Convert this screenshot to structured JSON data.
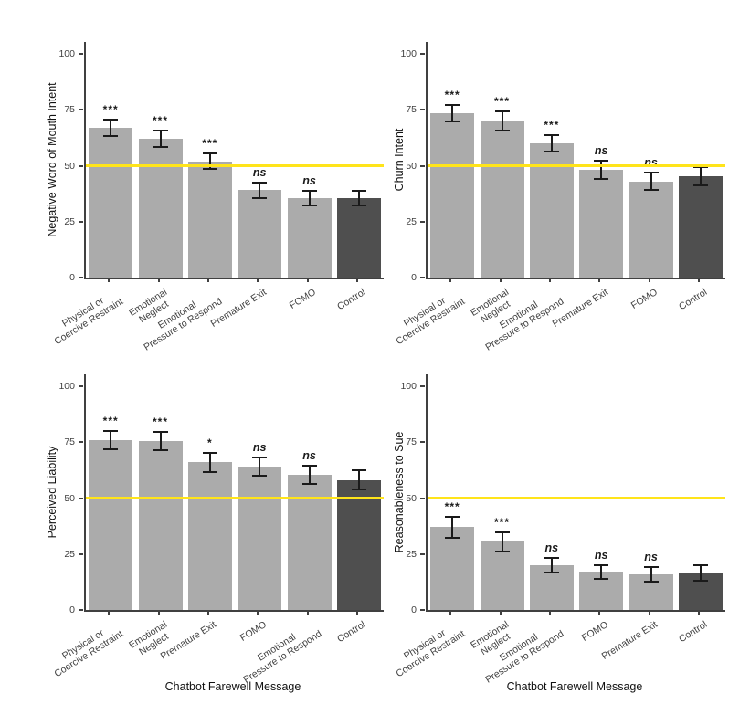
{
  "figure": {
    "xlabel": "Chatbot Farewell Message",
    "background": "#FFFFFF",
    "colors": {
      "bar": "#ABABAB",
      "control_bar": "#4F4F4F",
      "reference_line": "#FFE41A",
      "axis": "#404040",
      "error_bar": "#1A1A1A",
      "text": "#111111"
    }
  },
  "chart_data": [
    {
      "type": "bar",
      "title": "",
      "ylabel": "Negative Word of Mouth Intent",
      "xlabel": "Chatbot Farewell Message",
      "ylim": [
        0,
        100
      ],
      "yticks": [
        0,
        25,
        50,
        75,
        100
      ],
      "reference_line_y": 50,
      "grid": false,
      "legend": "none",
      "categories": [
        "Physical or\nCoercive Restraint",
        "Emotional\nNeglect",
        "Emotional\nPressure to Respond",
        "Premature Exit",
        "FOMO",
        "Control"
      ],
      "values": [
        67,
        62,
        52,
        39,
        35.5,
        35.5
      ],
      "error_margins": [
        4,
        4,
        4,
        4,
        3.8,
        3.7
      ],
      "significance": [
        "***",
        "***",
        "***",
        "ns",
        "ns",
        ""
      ],
      "control_index": 5
    },
    {
      "type": "bar",
      "title": "",
      "ylabel": "Churn Intent",
      "xlabel": "Chatbot Farewell Message",
      "ylim": [
        0,
        100
      ],
      "yticks": [
        0,
        25,
        50,
        75,
        100
      ],
      "reference_line_y": 50,
      "grid": false,
      "legend": "none",
      "categories": [
        "Physical or\nCoercive Restraint",
        "Emotional\nNeglect",
        "Emotional\nPressure to Respond",
        "Premature Exit",
        "FOMO",
        "Control"
      ],
      "values": [
        73.5,
        70,
        60,
        48,
        43,
        45.5
      ],
      "error_margins": [
        4,
        4.5,
        4,
        4.5,
        4.4,
        4.5
      ],
      "significance": [
        "***",
        "***",
        "***",
        "ns",
        "ns",
        ""
      ],
      "control_index": 5
    },
    {
      "type": "bar",
      "title": "",
      "ylabel": "Perceived Liability",
      "xlabel": "Chatbot Farewell Message",
      "ylim": [
        0,
        100
      ],
      "yticks": [
        0,
        25,
        50,
        75,
        100
      ],
      "reference_line_y": 50,
      "grid": false,
      "legend": "none",
      "categories": [
        "Physical or\nCoercive Restraint",
        "Emotional\nNeglect",
        "Premature Exit",
        "FOMO",
        "Emotional\nPressure to Respond",
        "Control"
      ],
      "values": [
        76,
        75.5,
        66,
        64,
        60.5,
        58
      ],
      "error_margins": [
        4.5,
        4.4,
        4.7,
        4.5,
        4.5,
        4.7
      ],
      "significance": [
        "***",
        "***",
        "*",
        "ns",
        "ns",
        ""
      ],
      "control_index": 5
    },
    {
      "type": "bar",
      "title": "",
      "ylabel": "Reasonableness to Sue",
      "xlabel": "Chatbot Farewell Message",
      "ylim": [
        0,
        100
      ],
      "yticks": [
        0,
        25,
        50,
        75,
        100
      ],
      "reference_line_y": 50,
      "grid": false,
      "legend": "none",
      "categories": [
        "Physical or\nCoercive Restraint",
        "Emotional\nNeglect",
        "Emotional\nPressure to Respond",
        "FOMO",
        "Premature Exit",
        "Control"
      ],
      "values": [
        37,
        30.5,
        20,
        17,
        16,
        16.5
      ],
      "error_margins": [
        5,
        4.6,
        3.5,
        3.5,
        3.7,
        3.9
      ],
      "significance": [
        "***",
        "***",
        "ns",
        "ns",
        "ns",
        ""
      ],
      "control_index": 5
    }
  ]
}
